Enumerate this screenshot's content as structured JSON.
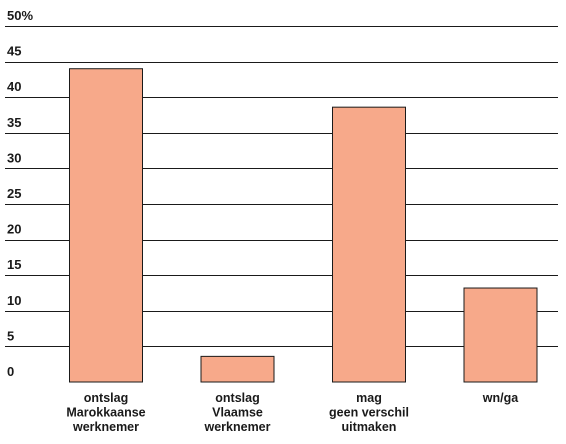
{
  "chart_data": {
    "type": "bar",
    "categories": [
      [
        "ontslag",
        "Marokkaanse",
        "werknemer"
      ],
      [
        "ontslag",
        "Vlaamse",
        "werknemer"
      ],
      [
        "mag",
        "geen verschil",
        "uitmaken"
      ],
      [
        "wn/ga"
      ]
    ],
    "values": [
      44,
      3.6,
      38.6,
      13.2
    ],
    "ylim": [
      0,
      50
    ],
    "yticks": [
      "0",
      "5",
      "10",
      "15",
      "20",
      "25",
      "30",
      "35",
      "40",
      "45",
      "50%"
    ],
    "grid": true,
    "bar_color": "#f7a98a",
    "title": "",
    "xlabel": "",
    "ylabel": ""
  }
}
